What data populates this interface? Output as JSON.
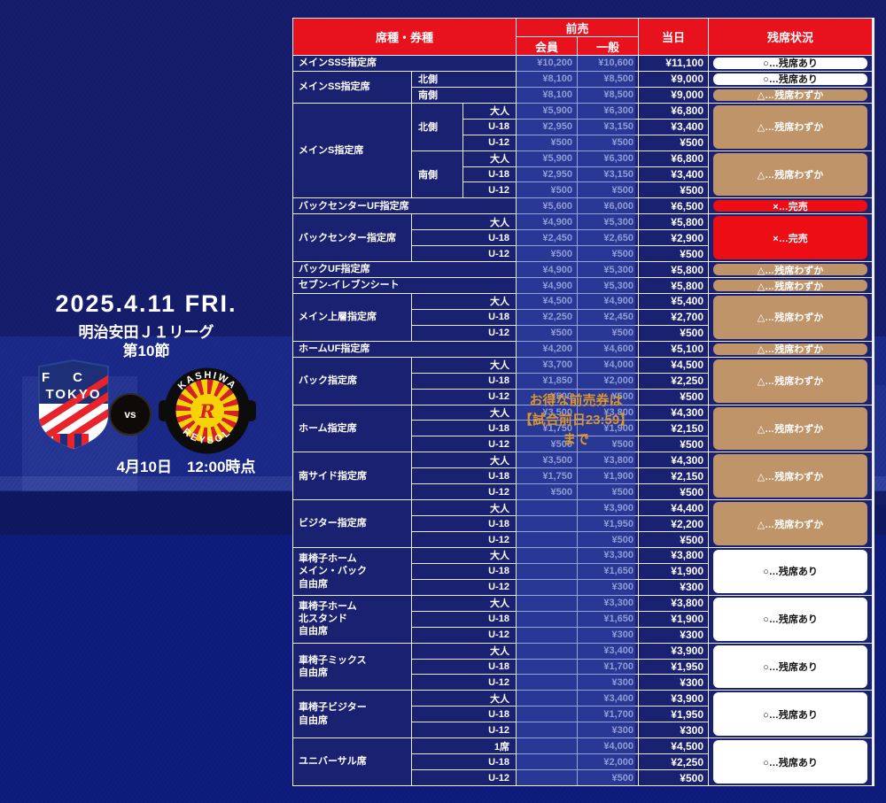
{
  "left_panel": {
    "date": "2025.4.11 FRI.",
    "league": "明治安田Ｊ１リーグ",
    "round": "第10節",
    "as_of": "4月10日　12:00時点",
    "vs": "vs",
    "home_team": {
      "initials": "FC",
      "name": "TOKYO"
    },
    "away_team": {
      "arc_top": "KASHIWA",
      "arc_bottom": "REYSOL",
      "monogram": "R"
    }
  },
  "promo": {
    "lines": [
      "お得な前売券は",
      "【試合前日23:59】",
      "まで"
    ]
  },
  "table": {
    "headers": {
      "seat": "席種・券種",
      "advance": "前売",
      "member": "会員",
      "general": "一般",
      "day": "当日",
      "status": "残席状況"
    },
    "statuses": {
      "available": {
        "label": "○…残席あり",
        "bg": "#ffffff",
        "text": "#141414"
      },
      "few": {
        "label": "△…残席わずか",
        "bg": "#bf9469",
        "text": "#ffffff"
      },
      "soldout": {
        "label": "×…完売",
        "bg": "#ec0d15",
        "text": "#ffffff"
      }
    },
    "groups": [
      {
        "name": [
          "メインSSS指定席"
        ],
        "sections": [
          {
            "rows": [
              {
                "member": "¥10,200",
                "general": "¥10,600",
                "day": "¥11,100"
              }
            ],
            "status": "available"
          }
        ]
      },
      {
        "name": [
          "メインSS指定席"
        ],
        "sections": [
          {
            "sub": "北側",
            "rows": [
              {
                "member": "¥8,100",
                "general": "¥8,500",
                "day": "¥9,000"
              }
            ],
            "status": "available"
          },
          {
            "sub": "南側",
            "rows": [
              {
                "member": "¥8,100",
                "general": "¥8,500",
                "day": "¥9,000"
              }
            ],
            "status": "few"
          }
        ]
      },
      {
        "name": [
          "メインS指定席"
        ],
        "sections": [
          {
            "sub": "北側",
            "rows": [
              {
                "age": "大人",
                "member": "¥5,900",
                "general": "¥6,300",
                "day": "¥6,800"
              },
              {
                "age": "U-18",
                "member": "¥2,950",
                "general": "¥3,150",
                "day": "¥3,400"
              },
              {
                "age": "U-12",
                "member": "¥500",
                "general": "¥500",
                "day": "¥500"
              }
            ],
            "status": "few"
          },
          {
            "sub": "南側",
            "rows": [
              {
                "age": "大人",
                "member": "¥5,900",
                "general": "¥6,300",
                "day": "¥6,800"
              },
              {
                "age": "U-18",
                "member": "¥2,950",
                "general": "¥3,150",
                "day": "¥3,400"
              },
              {
                "age": "U-12",
                "member": "¥500",
                "general": "¥500",
                "day": "¥500"
              }
            ],
            "status": "few"
          }
        ]
      },
      {
        "name": [
          "バックセンターUF指定席"
        ],
        "sections": [
          {
            "rows": [
              {
                "member": "¥5,600",
                "general": "¥6,000",
                "day": "¥6,500"
              }
            ],
            "status": "soldout"
          }
        ]
      },
      {
        "name": [
          "バックセンター指定席"
        ],
        "sections": [
          {
            "rows": [
              {
                "age": "大人",
                "member": "¥4,900",
                "general": "¥5,300",
                "day": "¥5,800"
              },
              {
                "age": "U-18",
                "member": "¥2,450",
                "general": "¥2,650",
                "day": "¥2,900"
              },
              {
                "age": "U-12",
                "member": "¥500",
                "general": "¥500",
                "day": "¥500"
              }
            ],
            "status": "soldout"
          }
        ]
      },
      {
        "name": [
          "バックUF指定席"
        ],
        "sections": [
          {
            "rows": [
              {
                "member": "¥4,900",
                "general": "¥5,300",
                "day": "¥5,800"
              }
            ],
            "status": "few"
          }
        ]
      },
      {
        "name": [
          "セブン‐イレブンシート"
        ],
        "sections": [
          {
            "rows": [
              {
                "member": "¥4,900",
                "general": "¥5,300",
                "day": "¥5,800"
              }
            ],
            "status": "few"
          }
        ]
      },
      {
        "name": [
          "メイン上層指定席"
        ],
        "sections": [
          {
            "rows": [
              {
                "age": "大人",
                "member": "¥4,500",
                "general": "¥4,900",
                "day": "¥5,400"
              },
              {
                "age": "U-18",
                "member": "¥2,250",
                "general": "¥2,450",
                "day": "¥2,700"
              },
              {
                "age": "U-12",
                "member": "¥500",
                "general": "¥500",
                "day": "¥500"
              }
            ],
            "status": "few"
          }
        ]
      },
      {
        "name": [
          "ホームUF指定席"
        ],
        "sections": [
          {
            "rows": [
              {
                "member": "¥4,200",
                "general": "¥4,600",
                "day": "¥5,100"
              }
            ],
            "status": "few"
          }
        ]
      },
      {
        "name": [
          "バック指定席"
        ],
        "sections": [
          {
            "rows": [
              {
                "age": "大人",
                "member": "¥3,700",
                "general": "¥4,000",
                "day": "¥4,500"
              },
              {
                "age": "U-18",
                "member": "¥1,850",
                "general": "¥2,000",
                "day": "¥2,250"
              },
              {
                "age": "U-12",
                "member": "¥500",
                "general": "¥500",
                "day": "¥500"
              }
            ],
            "status": "few"
          }
        ]
      },
      {
        "name": [
          "ホーム指定席"
        ],
        "sections": [
          {
            "rows": [
              {
                "age": "大人",
                "member": "¥3,500",
                "general": "¥3,800",
                "day": "¥4,300"
              },
              {
                "age": "U-18",
                "member": "¥1,750",
                "general": "¥1,900",
                "day": "¥2,150"
              },
              {
                "age": "U-12",
                "member": "¥500",
                "general": "¥500",
                "day": "¥500"
              }
            ],
            "status": "few"
          }
        ]
      },
      {
        "name": [
          "南サイド指定席"
        ],
        "sections": [
          {
            "rows": [
              {
                "age": "大人",
                "member": "¥3,500",
                "general": "¥3,800",
                "day": "¥4,300"
              },
              {
                "age": "U-18",
                "member": "¥1,750",
                "general": "¥1,900",
                "day": "¥2,150"
              },
              {
                "age": "U-12",
                "member": "¥500",
                "general": "¥500",
                "day": "¥500"
              }
            ],
            "status": "few"
          }
        ]
      },
      {
        "name": [
          "ビジター指定席"
        ],
        "sections": [
          {
            "rows": [
              {
                "age": "大人",
                "member": "",
                "general": "¥3,900",
                "day": "¥4,400"
              },
              {
                "age": "U-18",
                "member": "",
                "general": "¥1,950",
                "day": "¥2,200"
              },
              {
                "age": "U-12",
                "member": "",
                "general": "¥500",
                "day": "¥500"
              }
            ],
            "status": "few"
          }
        ]
      },
      {
        "name": [
          "車椅子ホーム",
          "メイン・バック",
          "自由席"
        ],
        "sections": [
          {
            "rows": [
              {
                "age": "大人",
                "member": "",
                "general": "¥3,300",
                "day": "¥3,800"
              },
              {
                "age": "U-18",
                "member": "",
                "general": "¥1,650",
                "day": "¥1,900"
              },
              {
                "age": "U-12",
                "member": "",
                "general": "¥300",
                "day": "¥300"
              }
            ],
            "status": "available"
          }
        ]
      },
      {
        "name": [
          "車椅子ホーム",
          "北スタンド",
          "自由席"
        ],
        "sections": [
          {
            "rows": [
              {
                "age": "大人",
                "member": "",
                "general": "¥3,300",
                "day": "¥3,800"
              },
              {
                "age": "U-18",
                "member": "",
                "general": "¥1,650",
                "day": "¥1,900"
              },
              {
                "age": "U-12",
                "member": "",
                "general": "¥300",
                "day": "¥300"
              }
            ],
            "status": "available"
          }
        ]
      },
      {
        "name": [
          "車椅子ミックス",
          "自由席"
        ],
        "sections": [
          {
            "rows": [
              {
                "age": "大人",
                "member": "",
                "general": "¥3,400",
                "day": "¥3,900"
              },
              {
                "age": "U-18",
                "member": "",
                "general": "¥1,700",
                "day": "¥1,950"
              },
              {
                "age": "U-12",
                "member": "",
                "general": "¥300",
                "day": "¥300"
              }
            ],
            "status": "available"
          }
        ]
      },
      {
        "name": [
          "車椅子ビジター",
          "自由席"
        ],
        "sections": [
          {
            "rows": [
              {
                "age": "大人",
                "member": "",
                "general": "¥3,400",
                "day": "¥3,900"
              },
              {
                "age": "U-18",
                "member": "",
                "general": "¥1,700",
                "day": "¥1,950"
              },
              {
                "age": "U-12",
                "member": "",
                "general": "¥300",
                "day": "¥300"
              }
            ],
            "status": "available"
          }
        ]
      },
      {
        "name": [
          "ユニバーサル席"
        ],
        "sections": [
          {
            "rows": [
              {
                "age": "1席",
                "member": "",
                "general": "¥4,000",
                "day": "¥4,500"
              },
              {
                "age": "U-18",
                "member": "",
                "general": "¥2,000",
                "day": "¥2,250"
              },
              {
                "age": "U-12",
                "member": "",
                "general": "¥500",
                "day": "¥500"
              }
            ],
            "status": "available"
          }
        ]
      }
    ]
  },
  "colors": {
    "header_red": "#e8111e",
    "table_navy": "#1a2170",
    "gridline": "#e9ecf5",
    "overlay_blue": "rgba(58,82,190,0.47)",
    "promo_text": "#d9952f",
    "status_available_bg": "#ffffff",
    "status_few_bg": "#bf9469",
    "status_soldout_bg": "#ec0d15",
    "bg_top": "#161d6d",
    "bg_photo_band": "#1b2a8a",
    "bg_bottom": "#0e1c7e",
    "fc_tokyo_blue": "#1d2f77",
    "fc_tokyo_red": "#e8232b",
    "reysol_yellow": "#f6d307",
    "reysol_red": "#d42027"
  }
}
